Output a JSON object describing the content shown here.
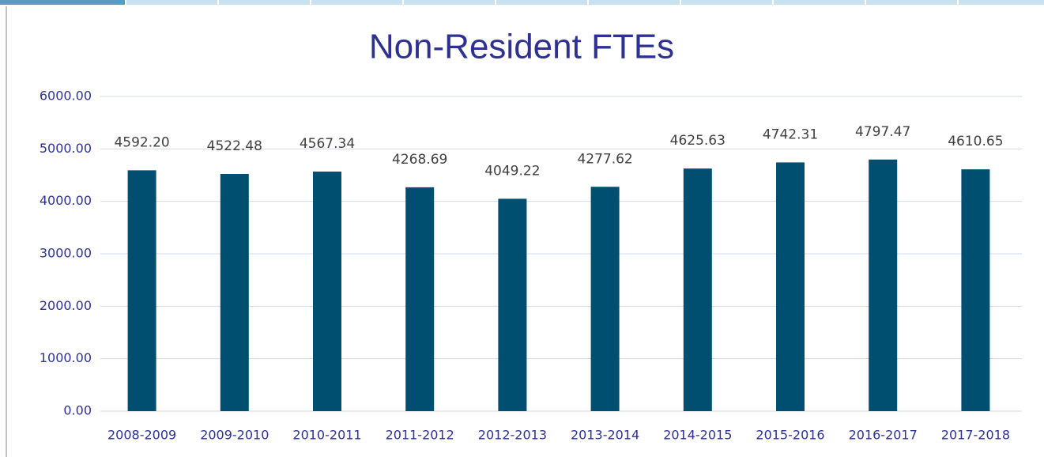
{
  "chart_data": {
    "type": "bar",
    "title": "Non-Resident FTEs",
    "categories": [
      "2008-2009",
      "2009-2010",
      "2010-2011",
      "2011-2012",
      "2012-2013",
      "2013-2014",
      "2014-2015",
      "2015-2016",
      "2016-2017",
      "2017-2018"
    ],
    "values": [
      4592.2,
      4522.48,
      4567.34,
      4268.69,
      4049.22,
      4277.62,
      4625.63,
      4742.31,
      4797.47,
      4610.65
    ],
    "value_labels": [
      "4592.20",
      "4522.48",
      "4567.34",
      "4268.69",
      "4049.22",
      "4277.62",
      "4625.63",
      "4742.31",
      "4797.47",
      "4610.65"
    ],
    "color": "#004f71",
    "ylim": [
      0,
      6000
    ],
    "yticks": [
      {
        "value": 0,
        "label": "0.00"
      },
      {
        "value": 1000,
        "label": "1000.00"
      },
      {
        "value": 2000,
        "label": "2000.00"
      },
      {
        "value": 3000,
        "label": "3000.00"
      },
      {
        "value": 4000,
        "label": "4000.00"
      },
      {
        "value": 5000,
        "label": "5000.00"
      },
      {
        "value": 6000,
        "label": "6000.00"
      }
    ],
    "grid": true
  }
}
